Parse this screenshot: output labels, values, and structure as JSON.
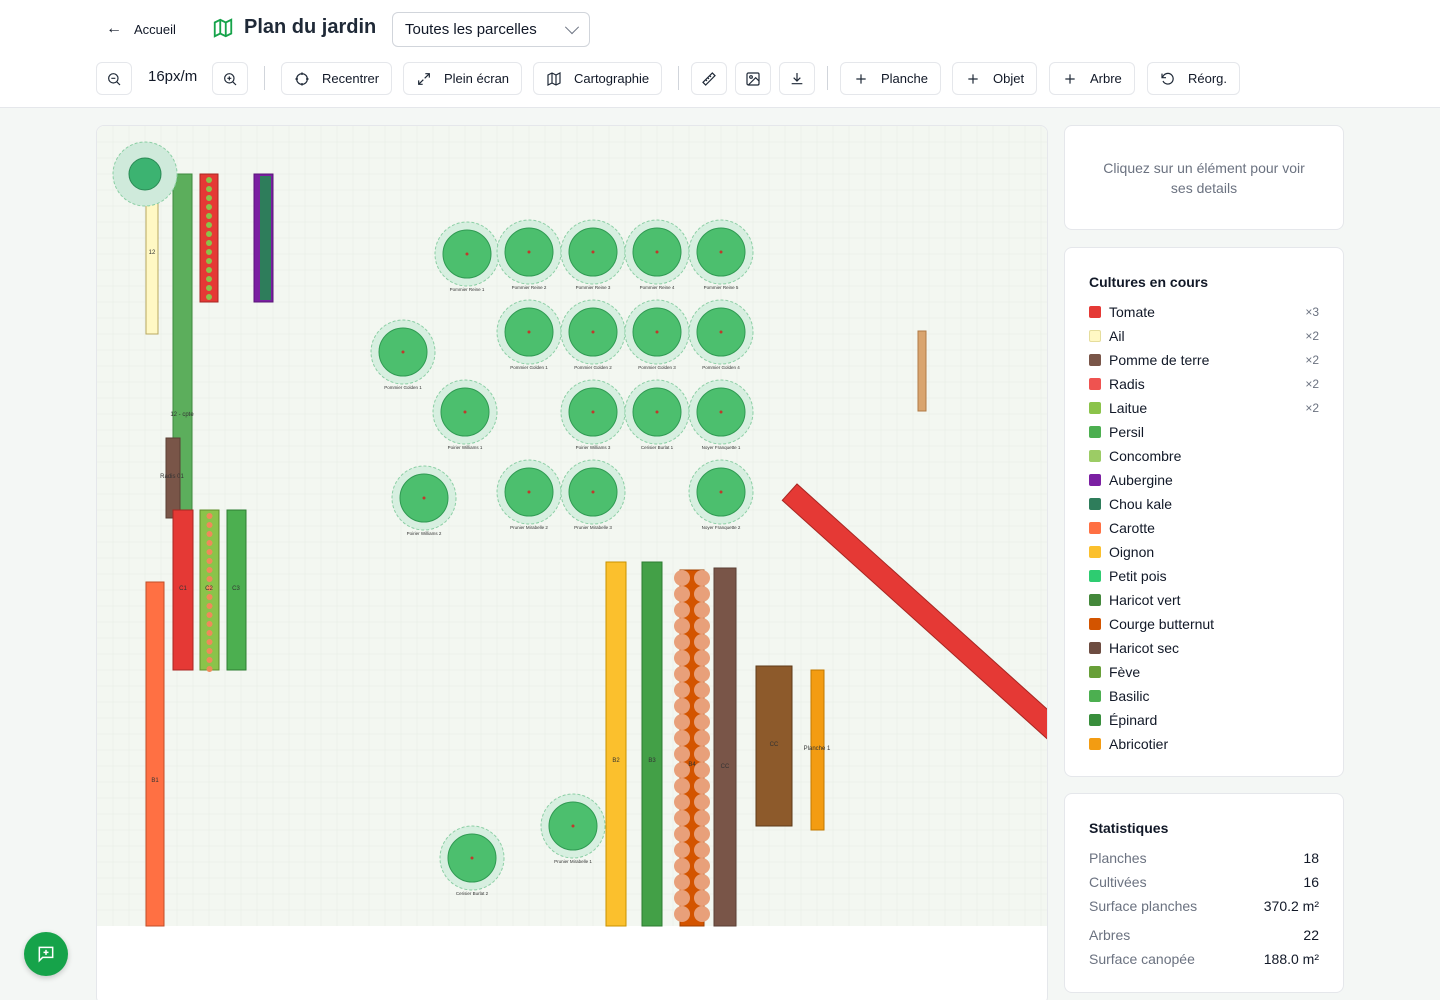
{
  "header": {
    "back_label": "Accueil",
    "title": "Plan du jardin",
    "parcel_select": "Toutes les parcelles"
  },
  "toolbar": {
    "zoom": "16px/m",
    "recenter": "Recentrer",
    "fullscreen": "Plein écran",
    "cartography": "Cartographie",
    "add_bed": "Planche",
    "add_object": "Objet",
    "add_tree": "Arbre",
    "reorg": "Réorg."
  },
  "details_hint": "Cliquez sur un élément pour voir ses details",
  "crops": {
    "title": "Cultures en cours",
    "items": [
      {
        "name": "Tomate",
        "color": "#e53935",
        "count": "×3"
      },
      {
        "name": "Ail",
        "color": "#fff8c4",
        "count": "×2"
      },
      {
        "name": "Pomme de terre",
        "color": "#795548",
        "count": "×2"
      },
      {
        "name": "Radis",
        "color": "#ef5350",
        "count": "×2"
      },
      {
        "name": "Laitue",
        "color": "#8bc34a",
        "count": "×2"
      },
      {
        "name": "Persil",
        "color": "#4caf50",
        "count": ""
      },
      {
        "name": "Concombre",
        "color": "#9ccc65",
        "count": ""
      },
      {
        "name": "Aubergine",
        "color": "#7b1fa2",
        "count": ""
      },
      {
        "name": "Chou kale",
        "color": "#2e7d5b",
        "count": ""
      },
      {
        "name": "Carotte",
        "color": "#ff7043",
        "count": ""
      },
      {
        "name": "Oignon",
        "color": "#fbc02d",
        "count": ""
      },
      {
        "name": "Petit pois",
        "color": "#2ecc71",
        "count": ""
      },
      {
        "name": "Haricot vert",
        "color": "#43883b",
        "count": ""
      },
      {
        "name": "Courge butternut",
        "color": "#d35400",
        "count": ""
      },
      {
        "name": "Haricot sec",
        "color": "#6d4c41",
        "count": ""
      },
      {
        "name": "Fève",
        "color": "#689f38",
        "count": ""
      },
      {
        "name": "Basilic",
        "color": "#4caf50",
        "count": ""
      },
      {
        "name": "Épinard",
        "color": "#388e3c",
        "count": ""
      },
      {
        "name": "Abricotier",
        "color": "#f39c12",
        "count": ""
      }
    ]
  },
  "stats": {
    "title": "Statistiques",
    "beds_label": "Planches",
    "beds": "18",
    "cultivated_label": "Cultivées",
    "cultivated": "16",
    "surface_label": "Surface planches",
    "surface": "370.2 m²",
    "trees_label": "Arbres",
    "trees": "22",
    "canopy_label": "Surface canopée",
    "canopy": "188.0 m²"
  },
  "map": {
    "bed_labels": [
      "12",
      "12 - cpte",
      "Radis 01",
      "C1",
      "C2",
      "C3",
      "B1",
      "B2",
      "B3",
      "B4",
      "CC",
      "Planche 1"
    ],
    "tree_labels": [
      "Pommier Reine 1",
      "Pommier Reine 2",
      "Pommier Reine 3",
      "Pommier Reine 4",
      "Pommier Reine 5",
      "Pommier Golden 1",
      "Pommier Golden 2",
      "Pommier Golden 3",
      "Pommier Golden 4",
      "Figuier Brown Turkey",
      "Poirier Williams 1",
      "Poirier Williams 3",
      "Cerisier Burlat 1",
      "Noyer Franquette 1",
      "Poirier Williams 2",
      "Prunier Mirabelle 2",
      "Prunier Mirabelle 3",
      "Noyer Franquette 2",
      "Prunier Mirabelle 1",
      "Cerisier Burlat 2"
    ]
  }
}
